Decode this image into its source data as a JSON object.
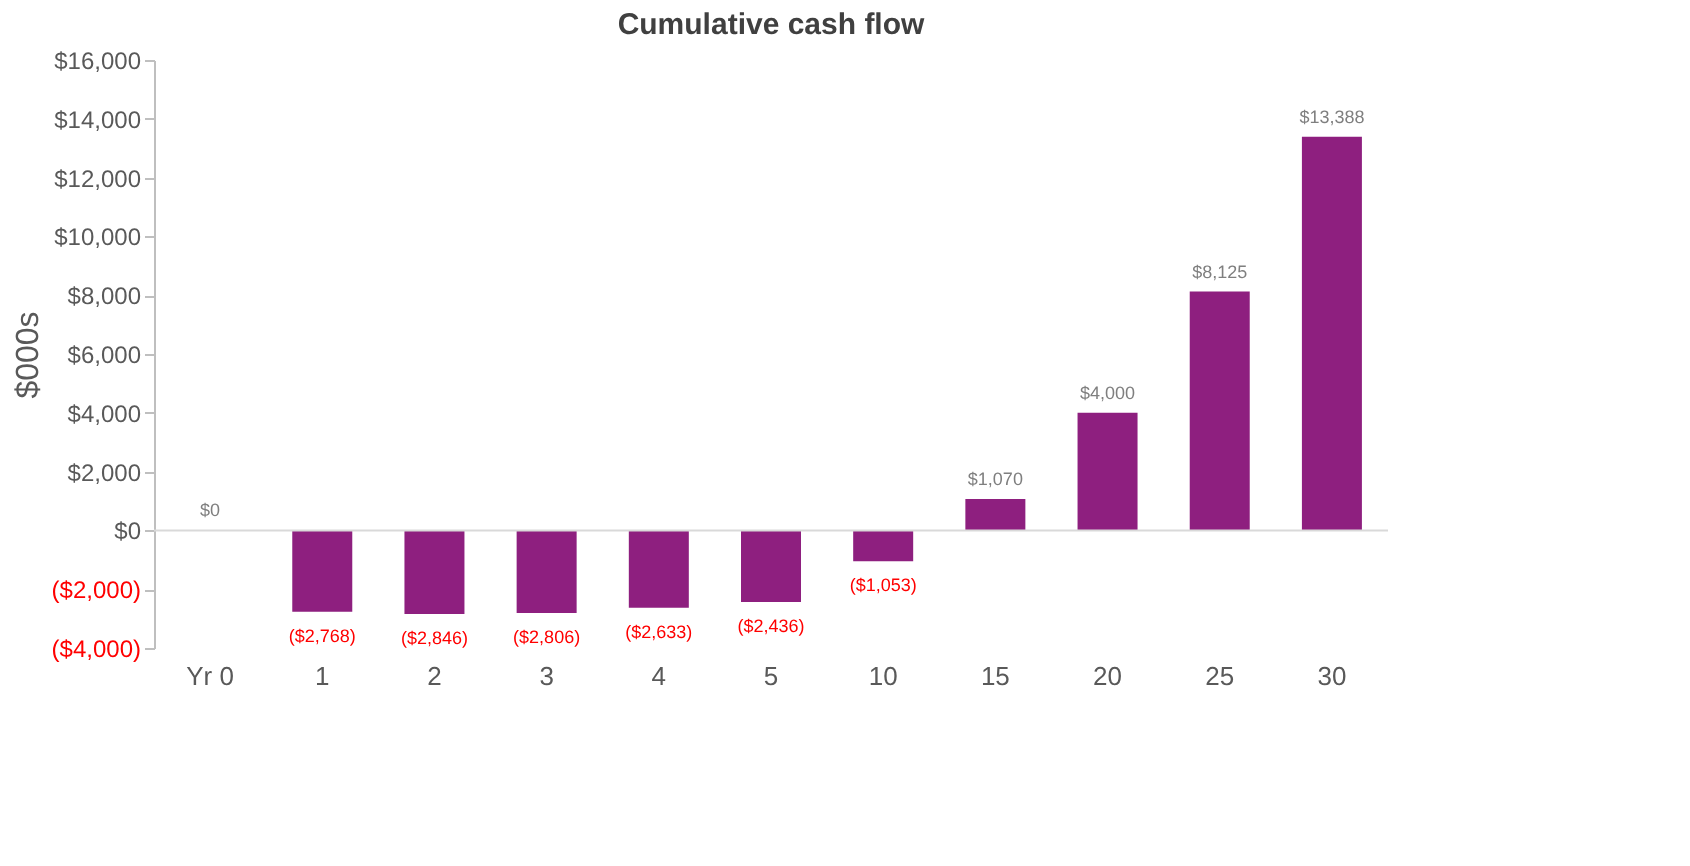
{
  "chart_data": {
    "type": "bar",
    "title": "Cumulative cash flow",
    "ylabel": "$000s",
    "categories": [
      "Yr 0",
      "1",
      "2",
      "3",
      "4",
      "5",
      "10",
      "15",
      "20",
      "25",
      "30"
    ],
    "values": [
      0,
      -2768,
      -2846,
      -2806,
      -2633,
      -2436,
      -1053,
      1070,
      4000,
      8125,
      13388
    ],
    "value_labels": [
      "$0",
      "($2,768)",
      "($2,846)",
      "($2,806)",
      "($2,633)",
      "($2,436)",
      "($1,053)",
      "$1,070",
      "$4,000",
      "$8,125",
      "$13,388"
    ],
    "color": "#8e1f7f",
    "ylim": [
      -4000,
      16000
    ],
    "yticks": [
      {
        "value": -4000,
        "label": "($4,000)"
      },
      {
        "value": -2000,
        "label": "($2,000)"
      },
      {
        "value": 0,
        "label": "$0"
      },
      {
        "value": 2000,
        "label": "$2,000"
      },
      {
        "value": 4000,
        "label": "$4,000"
      },
      {
        "value": 6000,
        "label": "$6,000"
      },
      {
        "value": 8000,
        "label": "$8,000"
      },
      {
        "value": 10000,
        "label": "$10,000"
      },
      {
        "value": 12000,
        "label": "$12,000"
      },
      {
        "value": 14000,
        "label": "$14,000"
      },
      {
        "value": 16000,
        "label": "$16,000"
      }
    ],
    "ref_lines": [
      {
        "axis": "y",
        "value": 0,
        "color": "#d9d9d9"
      }
    ],
    "grid": false
  }
}
